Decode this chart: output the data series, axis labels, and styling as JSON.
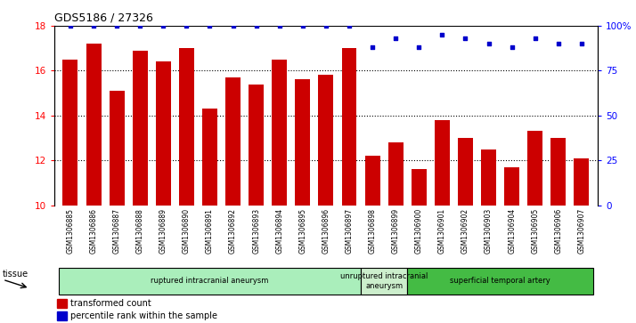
{
  "title": "GDS5186 / 27326",
  "samples": [
    "GSM1306885",
    "GSM1306886",
    "GSM1306887",
    "GSM1306888",
    "GSM1306889",
    "GSM1306890",
    "GSM1306891",
    "GSM1306892",
    "GSM1306893",
    "GSM1306894",
    "GSM1306895",
    "GSM1306896",
    "GSM1306897",
    "GSM1306898",
    "GSM1306899",
    "GSM1306900",
    "GSM1306901",
    "GSM1306902",
    "GSM1306903",
    "GSM1306904",
    "GSM1306905",
    "GSM1306906",
    "GSM1306907"
  ],
  "bar_values": [
    16.5,
    17.2,
    15.1,
    16.9,
    16.4,
    17.0,
    14.3,
    15.7,
    15.4,
    16.5,
    15.6,
    15.8,
    17.0,
    12.2,
    12.8,
    11.6,
    13.8,
    13.0,
    12.5,
    11.7,
    13.3,
    13.0,
    12.1
  ],
  "percentile_values": [
    100,
    100,
    100,
    100,
    100,
    100,
    100,
    100,
    100,
    100,
    100,
    100,
    100,
    88,
    93,
    88,
    95,
    93,
    90,
    88,
    93,
    90,
    90
  ],
  "bar_color": "#cc0000",
  "dot_color": "#0000cc",
  "ylim_left": [
    10,
    18
  ],
  "ylim_right": [
    0,
    100
  ],
  "yticks_left": [
    10,
    12,
    14,
    16,
    18
  ],
  "yticks_right": [
    0,
    25,
    50,
    75,
    100
  ],
  "ytick_labels_right": [
    "0",
    "25",
    "50",
    "75",
    "100%"
  ],
  "groups": [
    {
      "label": "ruptured intracranial aneurysm",
      "start": 0,
      "end": 13,
      "color": "#aaeebb"
    },
    {
      "label": "unruptured intracranial\naneurysm",
      "start": 13,
      "end": 15,
      "color": "#cceecc"
    },
    {
      "label": "superficial temporal artery",
      "start": 15,
      "end": 23,
      "color": "#44bb44"
    }
  ],
  "legend_items": [
    {
      "label": "transformed count",
      "color": "#cc0000"
    },
    {
      "label": "percentile rank within the sample",
      "color": "#0000cc"
    }
  ],
  "tissue_label": "tissue",
  "plot_bg_color": "#ffffff",
  "grid_color": "black",
  "group_border_color": "black"
}
